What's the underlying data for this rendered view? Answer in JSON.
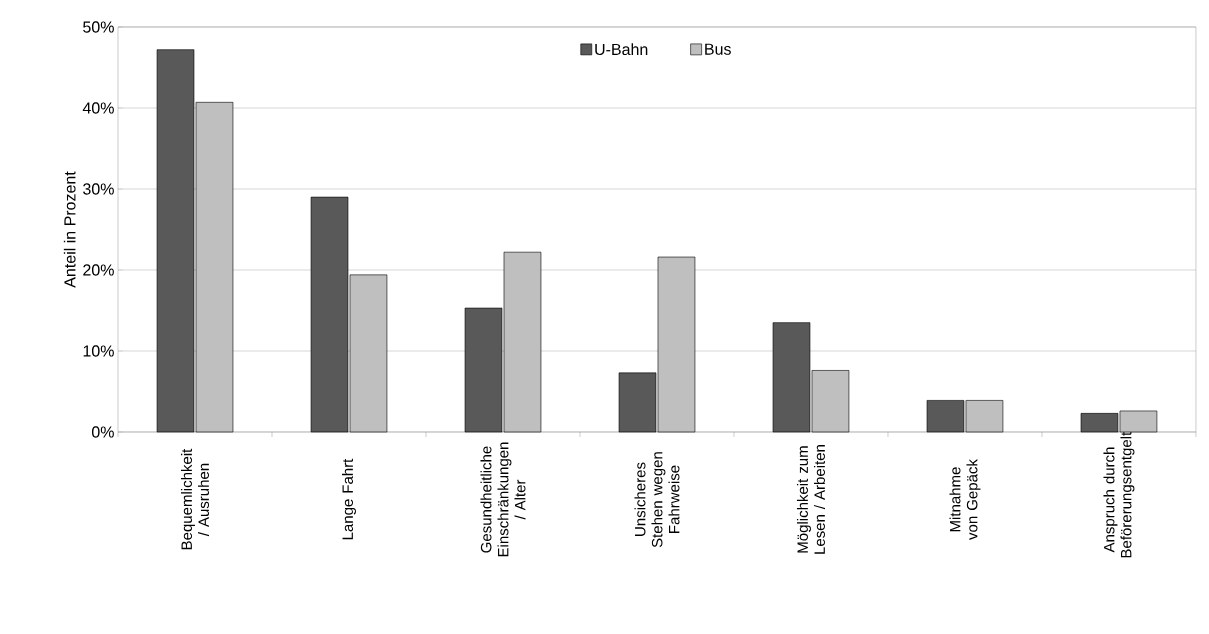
{
  "chart_data": {
    "type": "bar",
    "ylabel": "Anteil in Prozent",
    "categories": [
      "Bequemlichkeit / Ausruhen",
      "Lange Fahrt",
      "Gesundheitliche Einschränkungen / Alter",
      "Unsicheres Stehen wegen Fahrweise",
      "Möglichkeit zum Lesen / Arbeiten",
      "Mitnahme von Gepäck",
      "Anspruch durch Beförerungsentgelt"
    ],
    "series": [
      {
        "name": "U-Bahn",
        "color": "#595959",
        "values": [
          47.2,
          29.0,
          15.3,
          7.3,
          13.5,
          3.9,
          2.3
        ]
      },
      {
        "name": "Bus",
        "color": "#bfbfbf",
        "values": [
          40.7,
          19.4,
          22.2,
          21.6,
          7.6,
          3.9,
          2.6
        ]
      }
    ],
    "ylim": [
      0,
      50
    ],
    "yticks": [
      {
        "value": 0,
        "label": "0%"
      },
      {
        "value": 10,
        "label": "10%"
      },
      {
        "value": 20,
        "label": "20%"
      },
      {
        "value": 30,
        "label": "30%"
      },
      {
        "value": 40,
        "label": "40%"
      },
      {
        "value": 50,
        "label": "50%"
      }
    ],
    "grid": "y",
    "legend": "top"
  }
}
